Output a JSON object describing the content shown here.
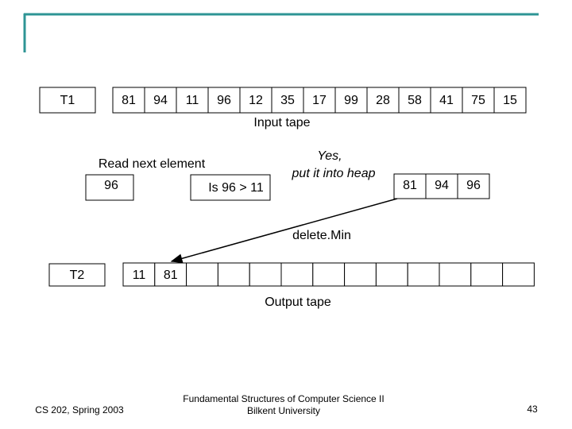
{
  "input": {
    "label": "T1",
    "cells": [
      81,
      94,
      11,
      96,
      12,
      35,
      17,
      99,
      28,
      58,
      41,
      75,
      15
    ],
    "caption": "Input tape"
  },
  "step": {
    "read_label": "Read next element",
    "read_value": 96,
    "compare": "Is 96 > 11",
    "answer": [
      "Yes,",
      "put it into heap"
    ]
  },
  "heap": [
    81,
    94,
    96
  ],
  "arrow_label": "delete.Min",
  "output": {
    "label": "T2",
    "cells": [
      11,
      81
    ],
    "caption": "Output tape"
  },
  "footer": {
    "left": "CS 202, Spring 2003",
    "center": [
      "Fundamental Structures of Computer Science II",
      "Bilkent University"
    ],
    "page": 43
  }
}
